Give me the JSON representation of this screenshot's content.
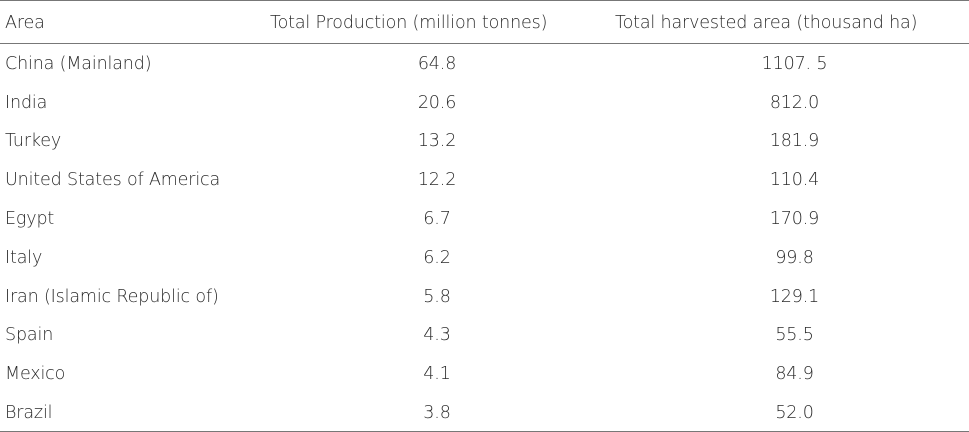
{
  "table": {
    "headers": [
      "Area",
      "Total Production (million tonnes)",
      "Total harvested area (thousand ha)"
    ],
    "rows": [
      [
        "China (Mainland)",
        "64.8",
        "1107. 5"
      ],
      [
        "India",
        "20.6",
        "812.0"
      ],
      [
        "Turkey",
        "13.2",
        "181.9"
      ],
      [
        "United States of America",
        "12.2",
        "110.4"
      ],
      [
        "Egypt",
        "6.7",
        "170.9"
      ],
      [
        "Italy",
        "6.2",
        "99.8"
      ],
      [
        "Iran (Islamic Republic of)",
        "5.8",
        "129.1"
      ],
      [
        "Spain",
        "4.3",
        "55.5"
      ],
      [
        "Mexico",
        "4.1",
        "84.9"
      ],
      [
        "Brazil",
        "3.8",
        "52.0"
      ]
    ]
  }
}
